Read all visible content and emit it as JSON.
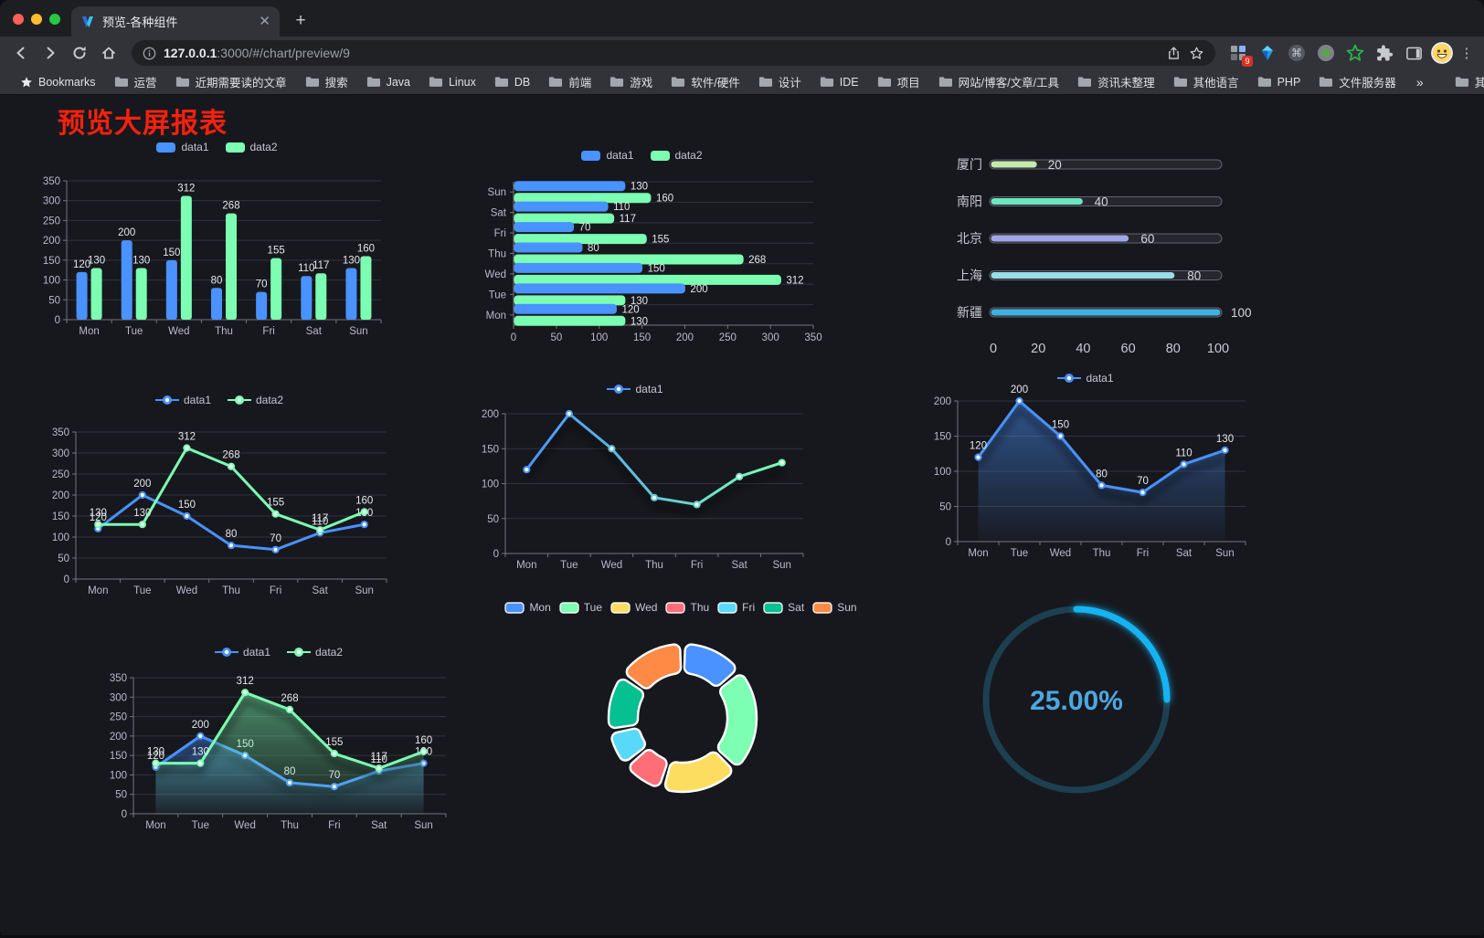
{
  "browser": {
    "tab_title": "预览-各种组件",
    "url_host": "127.0.0.1",
    "url_rest": ":3000/#/chart/preview/9",
    "bookmarks_label": "Bookmarks",
    "bookmark_folders": [
      "运营",
      "近期需要读的文章",
      "搜索",
      "Java",
      "Linux",
      "DB",
      "前端",
      "游戏",
      "软件/硬件",
      "设计",
      "IDE",
      "项目",
      "网站/博客/文章/工具",
      "资讯未整理",
      "其他语言",
      "PHP",
      "文件服务器"
    ],
    "bookmarks_overflow": "»",
    "other_bookmarks": "其他书签",
    "extension_badge": "9"
  },
  "page": {
    "title": "预览大屏报表"
  },
  "chart_data": [
    {
      "id": "c1",
      "type": "bar",
      "title": "",
      "categories": [
        "Mon",
        "Tue",
        "Wed",
        "Thu",
        "Fri",
        "Sat",
        "Sun"
      ],
      "series": [
        {
          "name": "data1",
          "color": "#4992ff",
          "values": [
            120,
            200,
            150,
            80,
            70,
            110,
            130
          ]
        },
        {
          "name": "data2",
          "color": "#7cffb2",
          "values": [
            130,
            130,
            312,
            268,
            155,
            117,
            160
          ]
        }
      ],
      "ylim": [
        0,
        350
      ],
      "ytick_step": 50,
      "grid": true,
      "legend_position": "top",
      "show_labels": true
    },
    {
      "id": "c2",
      "type": "hbar",
      "categories": [
        "Mon",
        "Tue",
        "Wed",
        "Thu",
        "Fri",
        "Sat",
        "Sun"
      ],
      "series": [
        {
          "name": "data1",
          "color": "#4992ff",
          "values": [
            120,
            200,
            150,
            80,
            70,
            110,
            130
          ]
        },
        {
          "name": "data2",
          "color": "#7cffb2",
          "values": [
            130,
            130,
            312,
            268,
            155,
            117,
            160
          ]
        }
      ],
      "xlim": [
        0,
        350
      ],
      "xtick_step": 50,
      "grid": true,
      "legend_position": "top",
      "show_labels": true
    },
    {
      "id": "c3",
      "type": "progress-bars",
      "categories": [
        "厦门",
        "南阳",
        "北京",
        "上海",
        "新疆"
      ],
      "values": [
        20,
        40,
        60,
        80,
        100
      ],
      "colors": [
        "#c4ebad",
        "#6be6c1",
        "#a0a7e6",
        "#96dee8",
        "#3fb1e3"
      ],
      "xlim": [
        0,
        100
      ],
      "xticks": [
        0,
        20,
        40,
        60,
        80,
        100
      ]
    },
    {
      "id": "c4",
      "type": "line",
      "categories": [
        "Mon",
        "Tue",
        "Wed",
        "Thu",
        "Fri",
        "Sat",
        "Sun"
      ],
      "series": [
        {
          "name": "data1",
          "color": "#4992ff",
          "values": [
            120,
            200,
            150,
            80,
            70,
            110,
            130
          ]
        },
        {
          "name": "data2",
          "color": "#7cffb2",
          "values": [
            130,
            130,
            312,
            268,
            155,
            117,
            160
          ]
        }
      ],
      "ylim": [
        0,
        350
      ],
      "ytick_step": 50,
      "grid": true,
      "legend_position": "top",
      "show_labels": true,
      "markers": true
    },
    {
      "id": "c5",
      "type": "line",
      "categories": [
        "Mon",
        "Tue",
        "Wed",
        "Thu",
        "Fri",
        "Sat",
        "Sun"
      ],
      "series": [
        {
          "name": "data1",
          "color": "#4992ff",
          "gradient": [
            "#4992ff",
            "#7cffb2"
          ],
          "values": [
            120,
            200,
            150,
            80,
            70,
            110,
            130
          ]
        }
      ],
      "ylim": [
        0,
        200
      ],
      "ytick_step": 50,
      "grid": true,
      "legend_position": "top",
      "show_labels": false,
      "markers": true,
      "shadow": true
    },
    {
      "id": "c6",
      "type": "line",
      "categories": [
        "Mon",
        "Tue",
        "Wed",
        "Thu",
        "Fri",
        "Sat",
        "Sun"
      ],
      "series": [
        {
          "name": "data1",
          "color": "#4992ff",
          "area": true,
          "values": [
            120,
            200,
            150,
            80,
            70,
            110,
            130
          ]
        }
      ],
      "ylim": [
        0,
        200
      ],
      "ytick_step": 50,
      "grid": true,
      "legend_position": "top",
      "show_labels": true,
      "markers": true,
      "shadow": true
    },
    {
      "id": "c7",
      "type": "line",
      "categories": [
        "Mon",
        "Tue",
        "Wed",
        "Thu",
        "Fri",
        "Sat",
        "Sun"
      ],
      "series": [
        {
          "name": "data1",
          "color": "#4992ff",
          "area": true,
          "values": [
            120,
            200,
            150,
            80,
            70,
            110,
            130
          ]
        },
        {
          "name": "data2",
          "color": "#7cffb2",
          "area": true,
          "values": [
            130,
            130,
            312,
            268,
            155,
            117,
            160
          ]
        }
      ],
      "ylim": [
        0,
        350
      ],
      "ytick_step": 50,
      "grid": true,
      "legend_position": "top",
      "show_labels": true,
      "markers": true,
      "shadow": true
    },
    {
      "id": "c8",
      "type": "pie",
      "categories": [
        "Mon",
        "Tue",
        "Wed",
        "Thu",
        "Fri",
        "Sat",
        "Sun"
      ],
      "values": [
        120,
        200,
        150,
        80,
        70,
        110,
        130
      ],
      "colors": [
        "#4992ff",
        "#7cffb2",
        "#fddd60",
        "#ff6e76",
        "#58d9f9",
        "#05c091",
        "#ff8a45"
      ],
      "legend_position": "top",
      "donut": true
    },
    {
      "id": "c9",
      "type": "gauge",
      "label": "25.00%",
      "percent": 25,
      "color": "#19b3f2",
      "track_color": "#1c4051",
      "text_color": "#4da7e0"
    }
  ]
}
